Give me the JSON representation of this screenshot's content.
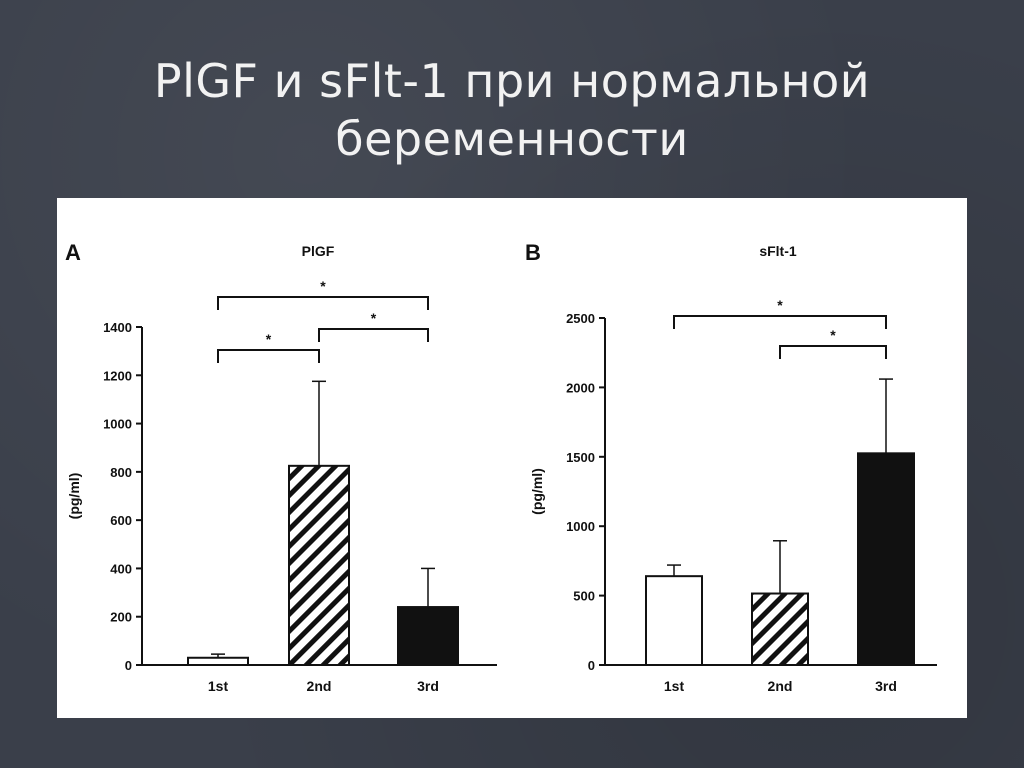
{
  "slide": {
    "title_line1": "PlGF и sFlt-1 при нормальной",
    "title_line2": "беременности"
  },
  "chart_data": [
    {
      "type": "bar",
      "panel_label": "A",
      "title": "PlGF",
      "ylabel": "(pg/ml)",
      "xlabel": "",
      "categories": [
        "1st",
        "2nd",
        "3rd"
      ],
      "values": [
        30,
        825,
        240
      ],
      "error_upper": [
        45,
        1175,
        400
      ],
      "fills": [
        "white",
        "hatched",
        "black"
      ],
      "ylim": [
        0,
        1400
      ],
      "yticks": [
        0,
        200,
        400,
        600,
        800,
        1000,
        1200,
        1400
      ],
      "significance": [
        {
          "from": 0,
          "to": 1,
          "label": "*"
        },
        {
          "from": 1,
          "to": 2,
          "label": "*"
        },
        {
          "from": 0,
          "to": 2,
          "label": "*"
        }
      ],
      "grid": false
    },
    {
      "type": "bar",
      "panel_label": "B",
      "title": "sFlt-1",
      "ylabel": "(pg/ml)",
      "xlabel": "",
      "categories": [
        "1st",
        "2nd",
        "3rd"
      ],
      "values": [
        640,
        515,
        1525
      ],
      "error_upper": [
        720,
        895,
        2060
      ],
      "fills": [
        "white",
        "hatched",
        "black"
      ],
      "ylim": [
        0,
        2500
      ],
      "yticks": [
        0,
        500,
        1000,
        1500,
        2000,
        2500
      ],
      "significance": [
        {
          "from": 1,
          "to": 2,
          "label": "*"
        },
        {
          "from": 0,
          "to": 2,
          "label": "*"
        }
      ],
      "grid": false
    }
  ]
}
